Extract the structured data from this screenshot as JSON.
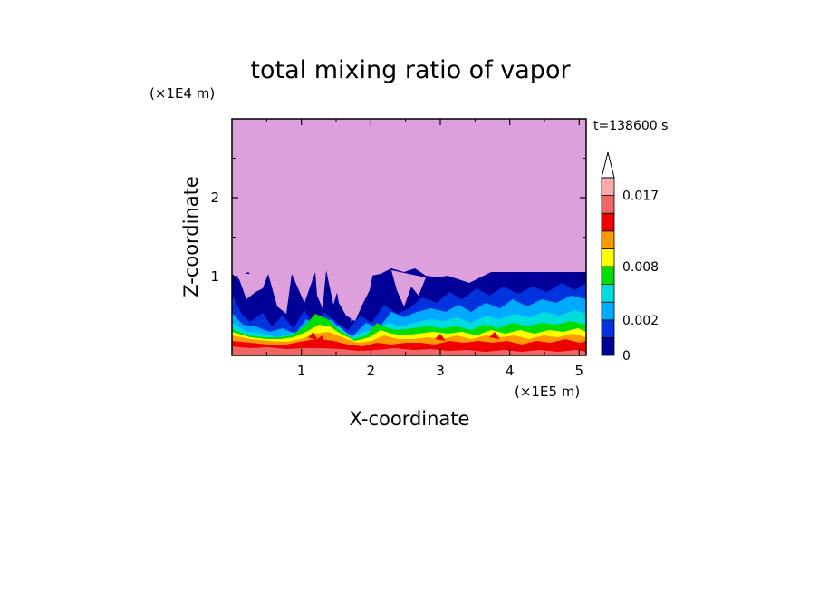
{
  "chart_data": {
    "type": "heatmap",
    "title": "total mixing ratio of vapor",
    "xlabel": "X-coordinate",
    "ylabel": "Z-coordinate",
    "x_unit": "(×1E5 m)",
    "y_unit": "(×1E4 m)",
    "time_label": "t=138600 s",
    "xlim": [
      0,
      5.1
    ],
    "ylim": [
      0,
      3.0
    ],
    "x_ticks": [
      1,
      2,
      3,
      4,
      5
    ],
    "y_ticks": [
      1,
      2
    ],
    "levels": [
      0,
      0.001,
      0.002,
      0.004,
      0.006,
      0.008,
      0.01,
      0.012,
      0.015,
      0.017,
      0.02
    ],
    "level_colors": [
      "#000099",
      "#0033dd",
      "#00aaff",
      "#00dddd",
      "#00dd00",
      "#ffff00",
      "#ff9900",
      "#ee0000",
      "#ee6666",
      "#ffaaaa"
    ],
    "upper_region_color": "#dda0dd",
    "colorbar_labels": [
      {
        "value": 0.017,
        "label": "0.017"
      },
      {
        "value": 0.008,
        "label": "0.008"
      },
      {
        "value": 0.002,
        "label": "0.002"
      },
      {
        "value": 0,
        "label": "0"
      }
    ]
  }
}
